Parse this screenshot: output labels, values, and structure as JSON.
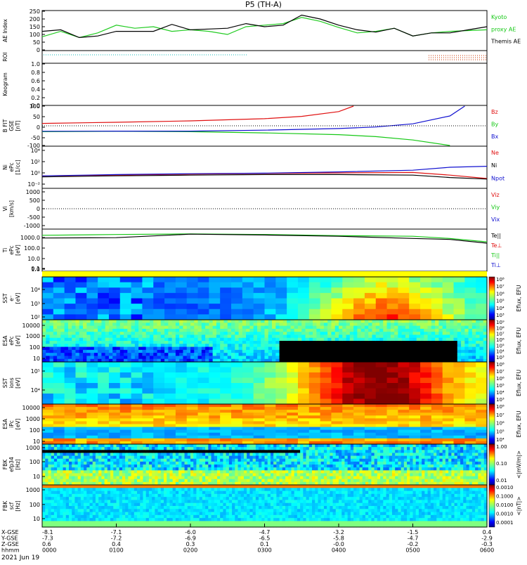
{
  "title": "P5 (TH-A)",
  "date_label": "2021 Jun 19",
  "colors": {
    "red": "#e01010",
    "green": "#16c816",
    "blue": "#1010d0",
    "black": "#000000",
    "ae_green": "#22cc22",
    "roi_teal": "#11bbbb",
    "roi_red": "#cc3300"
  },
  "panels": [
    {
      "id": "ae",
      "ylabel": [
        "AE Index"
      ],
      "ticks": [
        "250",
        "200",
        "150",
        "100",
        "50",
        "0"
      ],
      "legend": [
        {
          "text": "Kyoto",
          "color": "#16c816"
        },
        {
          "text": "proxy AE",
          "color": "#16c816"
        },
        {
          "text": "Themis AE",
          "color": "#000000"
        }
      ]
    },
    {
      "id": "roi",
      "ylabel": [
        "ROI"
      ],
      "ticks": [],
      "legend": []
    },
    {
      "id": "keogram",
      "ylabel": [
        "Keogram"
      ],
      "ticks": [
        "1.0",
        "0.8",
        "0.6",
        "0.4",
        "0.2",
        "0.0"
      ],
      "legend": []
    },
    {
      "id": "bfield",
      "ylabel": [
        "B FIT",
        "GSE",
        "[nT]"
      ],
      "ticks": [
        "100",
        "50",
        "0",
        "-50",
        "-100"
      ],
      "legend": [
        {
          "text": "Bz",
          "color": "#e01010"
        },
        {
          "text": "By",
          "color": "#16c816"
        },
        {
          "text": "Bx",
          "color": "#1010d0"
        }
      ]
    },
    {
      "id": "density",
      "ylabel": [
        "Ni",
        "ePc",
        "[1/cc]"
      ],
      "ticks": [
        "10⁴",
        "10²",
        "10⁰",
        "10⁻²"
      ],
      "legend": [
        {
          "text": "Ne",
          "color": "#e01010"
        },
        {
          "text": "Ni",
          "color": "#000000"
        },
        {
          "text": "Npot",
          "color": "#1010d0"
        }
      ]
    },
    {
      "id": "velocity",
      "ylabel": [
        "Vi",
        "[km/s]"
      ],
      "ticks": [
        "1000",
        "500",
        "0",
        "-500",
        "-1000"
      ],
      "legend": [
        {
          "text": "Viz",
          "color": "#e01010"
        },
        {
          "text": "Viy",
          "color": "#16c816"
        },
        {
          "text": "Vix",
          "color": "#1010d0"
        }
      ]
    },
    {
      "id": "temperature",
      "ylabel": [
        "Ti",
        "ePc",
        "[eV]"
      ],
      "ticks": [
        "1000.0",
        "100.0",
        "10.0",
        "1.0",
        "0.1"
      ],
      "legend": [
        {
          "text": "Te||",
          "color": "#000000"
        },
        {
          "text": "Te⊥",
          "color": "#e01010"
        },
        {
          "text": "Ti||",
          "color": "#16c816"
        },
        {
          "text": "Ti⊥",
          "color": "#1010d0"
        }
      ]
    },
    {
      "id": "sst_e",
      "ylabel": [
        "SST",
        "e⁻",
        "[eV]"
      ],
      "ticks": [
        "10⁴",
        "10³",
        "10²"
      ],
      "legend": []
    },
    {
      "id": "esa_e",
      "ylabel": [
        "ESA",
        "ePc",
        "[eV]"
      ],
      "ticks": [
        "10000",
        "1000",
        "100",
        "10"
      ],
      "legend": []
    },
    {
      "id": "sst_i",
      "ylabel": [
        "SST",
        "ions",
        "[eV]"
      ],
      "ticks": [
        "10⁵",
        "10⁴"
      ],
      "legend": []
    },
    {
      "id": "esa_i",
      "ylabel": [
        "ESA",
        "iPc",
        "[eV]"
      ],
      "ticks": [
        "10000",
        "1000",
        "100",
        "10"
      ],
      "legend": []
    },
    {
      "id": "fbk_e",
      "ylabel": [
        "FBK",
        "efp34",
        "[Hz]"
      ],
      "ticks": [
        "1000",
        "100",
        "10"
      ],
      "legend": []
    },
    {
      "id": "fbk_b",
      "ylabel": [
        "FBK",
        "scf",
        "[Hz]"
      ],
      "ticks": [
        "1000",
        "100",
        "10"
      ],
      "legend": []
    }
  ],
  "colorbars": [
    {
      "label": "Eflux, EFU",
      "ticks": [
        "10⁸",
        "10⁷",
        "10⁶",
        "10⁵",
        "10⁴",
        "10³"
      ]
    },
    {
      "label": "Eflux, EFU",
      "ticks": [
        "10⁹",
        "10⁸",
        "10⁷",
        "10⁶",
        "10⁵",
        "10⁴",
        "10³"
      ]
    },
    {
      "label": "Eflux, EFU",
      "ticks": [
        "10⁸",
        "10⁷",
        "10⁶",
        "10⁵",
        "10⁴",
        "10³"
      ]
    },
    {
      "label": "Eflux, EFU",
      "ticks": [
        "10⁸",
        "10⁷",
        "10⁶",
        "10⁵",
        "10⁴"
      ]
    },
    {
      "label": "<|mV/m|>",
      "ticks": [
        "1.00",
        "0.10",
        "0.01"
      ]
    },
    {
      "label": "<|nT|>",
      "ticks": [
        "0.0010",
        "0.1000",
        "0.0100",
        "0.0010",
        "0.0001"
      ]
    }
  ],
  "x_axis": {
    "row_labels": [
      "X-GSE",
      "Y-GSE",
      "Z-GSE",
      "hhmm"
    ],
    "columns": [
      {
        "x": "-8.1",
        "y": "-7.3",
        "z": "0.6",
        "hhmm": "0000"
      },
      {
        "x": "-7.1",
        "y": "-7.2",
        "z": "0.4",
        "hhmm": "0100"
      },
      {
        "x": "-6.0",
        "y": "-6.9",
        "z": "0.3",
        "hhmm": "0200"
      },
      {
        "x": "-4.7",
        "y": "-6.5",
        "z": "0.1",
        "hhmm": "0300"
      },
      {
        "x": "-3.2",
        "y": "-5.8",
        "z": "-0.0",
        "hhmm": "0400"
      },
      {
        "x": "-1.5",
        "y": "-4.7",
        "z": "-0.2",
        "hhmm": "0500"
      },
      {
        "x": "0.4",
        "y": "-2.9",
        "z": "-0.3",
        "hhmm": "0600"
      }
    ]
  },
  "chart_data": {
    "type": "line",
    "x_unit": "hours UT",
    "xlim": [
      0,
      6
    ],
    "series": [
      {
        "name": "Kyoto proxy AE",
        "panel": "ae",
        "x": [
          0,
          0.25,
          0.5,
          0.75,
          1.0,
          1.25,
          1.5,
          1.75,
          2.0,
          2.25,
          2.5,
          2.75,
          3.0,
          3.25,
          3.5,
          3.75,
          4.0,
          4.25,
          4.5,
          4.75,
          5.0,
          5.25,
          5.5,
          5.75,
          6.0
        ],
        "y": [
          85,
          120,
          80,
          110,
          160,
          140,
          150,
          120,
          130,
          120,
          100,
          150,
          160,
          170,
          210,
          185,
          145,
          110,
          120,
          140,
          90,
          110,
          120,
          125,
          130
        ]
      },
      {
        "name": "Themis AE",
        "panel": "ae",
        "x": [
          0,
          0.25,
          0.5,
          0.75,
          1.0,
          1.25,
          1.5,
          1.75,
          2.0,
          2.25,
          2.5,
          2.75,
          3.0,
          3.25,
          3.5,
          3.75,
          4.0,
          4.25,
          4.5,
          4.75,
          5.0,
          5.25,
          5.5,
          5.75,
          6.0
        ],
        "y": [
          120,
          130,
          80,
          90,
          120,
          120,
          120,
          165,
          130,
          135,
          140,
          170,
          150,
          160,
          225,
          200,
          160,
          130,
          115,
          140,
          90,
          110,
          110,
          130,
          150
        ]
      },
      {
        "name": "Bz",
        "panel": "bfield",
        "x": [
          0,
          1,
          2,
          3,
          3.5,
          4,
          4.2
        ],
        "y": [
          12,
          18,
          25,
          36,
          48,
          72,
          100
        ]
      },
      {
        "name": "By",
        "panel": "bfield",
        "x": [
          0,
          1,
          2,
          3,
          4,
          4.5,
          5,
          5.5
        ],
        "y": [
          -30,
          -28,
          -30,
          -36,
          -45,
          -55,
          -72,
          -100
        ]
      },
      {
        "name": "Bx",
        "panel": "bfield",
        "x": [
          0,
          1,
          2,
          3,
          4,
          4.5,
          5,
          5.5,
          5.7
        ],
        "y": [
          -28,
          -27,
          -27,
          -22,
          -14,
          -6,
          10,
          50,
          100
        ]
      },
      {
        "name": "Ne",
        "panel": "density",
        "x": [
          0,
          1,
          2,
          3,
          4,
          5,
          5.5,
          6
        ],
        "y": [
          0.3,
          0.4,
          0.6,
          0.8,
          1,
          1.2,
          0.4,
          0.1
        ]
      },
      {
        "name": "Ni",
        "panel": "density",
        "x": [
          0,
          1,
          2,
          3,
          4,
          5,
          5.5,
          6
        ],
        "y": [
          0.2,
          0.3,
          0.4,
          0.5,
          0.5,
          0.4,
          0.15,
          0.08
        ]
      },
      {
        "name": "Npot",
        "panel": "density",
        "x": [
          0,
          1,
          2,
          3,
          4,
          5,
          5.5,
          6
        ],
        "y": [
          0.3,
          0.5,
          0.7,
          0.9,
          1.5,
          3,
          10,
          15
        ]
      },
      {
        "name": "Ti||",
        "panel": "temperature",
        "x": [
          0,
          1,
          2,
          3,
          4,
          5,
          5.5,
          6
        ],
        "y": [
          2000,
          2500,
          3000,
          2500,
          1800,
          1500,
          800,
          300
        ]
      },
      {
        "name": "Te||",
        "panel": "temperature",
        "x": [
          0,
          1,
          2,
          3,
          4,
          5,
          5.5,
          6
        ],
        "y": [
          900,
          1000,
          2800,
          2200,
          1500,
          800,
          600,
          200
        ]
      }
    ]
  }
}
